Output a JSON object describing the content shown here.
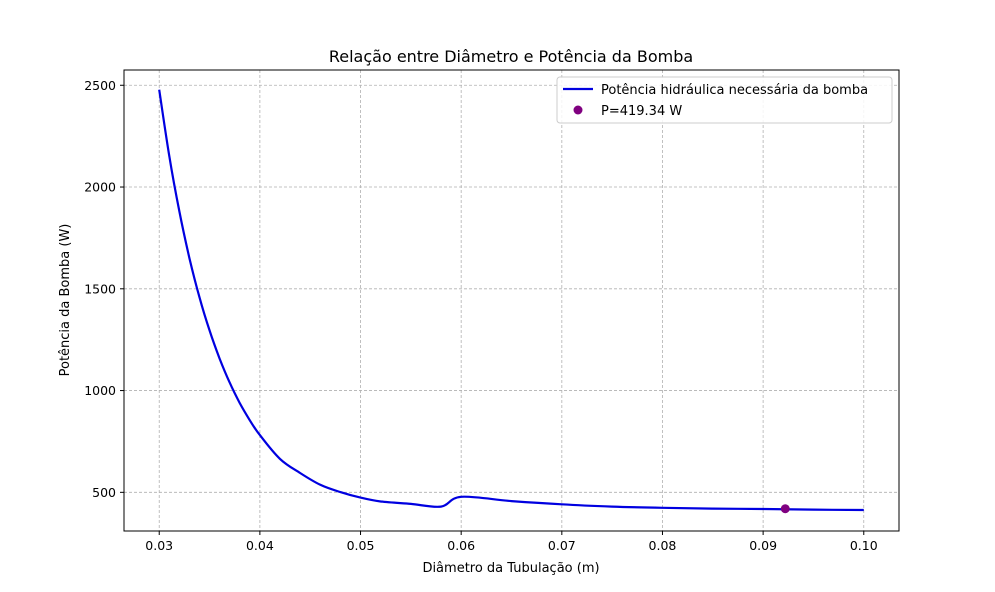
{
  "chart_data": {
    "type": "line",
    "title": "Relação entre Diâmetro e Potência da Bomba",
    "xlabel": "Diâmetro da Tubulação (m)",
    "ylabel": "Potência da Bomba (W)",
    "xlim": [
      0.0265,
      0.1035
    ],
    "ylim": [
      310,
      2575
    ],
    "xticks": [
      0.03,
      0.04,
      0.05,
      0.06,
      0.07,
      0.08,
      0.09,
      0.1
    ],
    "xtick_labels": [
      "0.03",
      "0.04",
      "0.05",
      "0.06",
      "0.07",
      "0.08",
      "0.09",
      "0.10"
    ],
    "yticks": [
      500,
      1000,
      1500,
      2000,
      2500
    ],
    "ytick_labels": [
      "500",
      "1000",
      "1500",
      "2000",
      "2500"
    ],
    "grid": true,
    "legend_position": "top-right",
    "series": [
      {
        "name": "Potência hidráulica necessária da bomba",
        "color": "#0000e0",
        "x": [
          0.03,
          0.031,
          0.032,
          0.033,
          0.034,
          0.035,
          0.036,
          0.037,
          0.038,
          0.039,
          0.04,
          0.042,
          0.044,
          0.046,
          0.048,
          0.05,
          0.052,
          0.055,
          0.058,
          0.06,
          0.065,
          0.07,
          0.075,
          0.08,
          0.085,
          0.09,
          0.095,
          0.1
        ],
        "y": [
          2478,
          2152,
          1880,
          1651,
          1458,
          1295,
          1157,
          1039,
          939,
          854,
          781,
          664,
          595,
          537,
          501,
          474,
          455,
          443,
          430,
          478,
          457,
          441,
          430,
          424,
          420,
          418,
          415,
          413
        ]
      }
    ],
    "point": {
      "name": "P=419.34 W",
      "color": "#800080",
      "x": 0.0922,
      "y": 419.34
    }
  }
}
